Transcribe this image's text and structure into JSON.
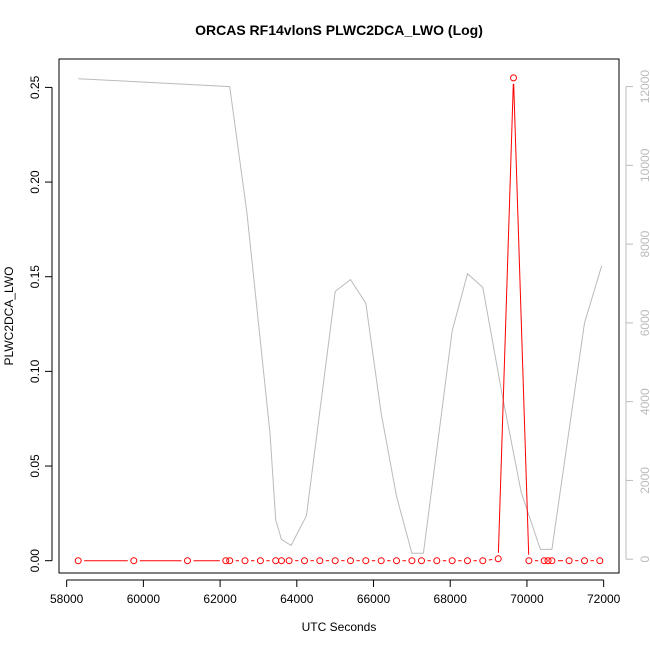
{
  "chart_data": {
    "type": "line",
    "title": "ORCAS RF14vlonS PLWC2DCA_LWO (Log)",
    "xlabel": "UTC Seconds",
    "ylabel": "PLWC2DCA_LWO",
    "xlim": [
      57800,
      72400
    ],
    "ylim": [
      -0.0065,
      0.265
    ],
    "y2lim": [
      -350,
      12700
    ],
    "x_ticks": [
      58000,
      60000,
      62000,
      64000,
      66000,
      68000,
      70000,
      72000
    ],
    "y_ticks": [
      0.0,
      0.05,
      0.1,
      0.15,
      0.2,
      0.25
    ],
    "y_tick_labels": [
      "0.00",
      "0.05",
      "0.10",
      "0.15",
      "0.20",
      "0.25"
    ],
    "y2_ticks": [
      0,
      2000,
      4000,
      6000,
      8000,
      10000,
      12000
    ],
    "series": [
      {
        "role": "primary",
        "color": "#ff0000",
        "marker": "open-circle",
        "x": [
          58300,
          59750,
          61150,
          62150,
          62250,
          62650,
          63050,
          63450,
          63600,
          63800,
          64200,
          64600,
          65000,
          65400,
          65800,
          66200,
          66600,
          67000,
          67250,
          67650,
          68050,
          68450,
          68850,
          69250,
          69650,
          70050,
          70450,
          70550,
          70650,
          71100,
          71500,
          71900
        ],
        "y": [
          0,
          0,
          0,
          0,
          0,
          0,
          0,
          0,
          0,
          0,
          0,
          0,
          0,
          0,
          0,
          0,
          0,
          0,
          0,
          0,
          0,
          0,
          0,
          0.001,
          0.255,
          0,
          0,
          0,
          0,
          0,
          0,
          0
        ]
      },
      {
        "role": "secondary",
        "color": "#bbbbbb",
        "marker": "none",
        "x": [
          58300,
          62250,
          62700,
          63300,
          63450,
          63600,
          63850,
          64250,
          65000,
          65400,
          65800,
          66200,
          66600,
          67000,
          67300,
          68050,
          68450,
          68850,
          69350,
          69850,
          70350,
          70450,
          70650,
          71500,
          71950
        ],
        "y": [
          12200,
          12000,
          8800,
          3200,
          1000,
          500,
          350,
          1100,
          6800,
          7100,
          6500,
          3700,
          1600,
          150,
          150,
          5800,
          7250,
          6900,
          4200,
          1700,
          250,
          250,
          250,
          6000,
          7450
        ]
      }
    ]
  }
}
